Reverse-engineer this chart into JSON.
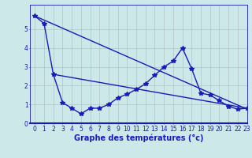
{
  "title": "Graphe des températures (°c)",
  "bg_color": "#cce8e8",
  "line_color": "#1a1ab8",
  "xlim": [
    -0.5,
    23
  ],
  "ylim": [
    0,
    6.3
  ],
  "yticks": [
    0,
    1,
    2,
    3,
    4,
    5
  ],
  "xticks": [
    0,
    1,
    2,
    3,
    4,
    5,
    6,
    7,
    8,
    9,
    10,
    11,
    12,
    13,
    14,
    15,
    16,
    17,
    18,
    19,
    20,
    21,
    22,
    23
  ],
  "series1_x": [
    0,
    1,
    2,
    3,
    4,
    5,
    6,
    7,
    8,
    9,
    10,
    11,
    12,
    13,
    14,
    15,
    16,
    17,
    18,
    19,
    20,
    21,
    22,
    23
  ],
  "series1_y": [
    5.7,
    5.3,
    2.6,
    1.1,
    0.8,
    0.5,
    0.8,
    0.8,
    1.0,
    1.35,
    1.55,
    1.8,
    2.1,
    2.55,
    3.0,
    3.3,
    4.0,
    2.9,
    1.6,
    1.5,
    1.2,
    0.9,
    0.75,
    0.8
  ],
  "series2_x": [
    0,
    23
  ],
  "series2_y": [
    5.7,
    0.75
  ],
  "series3_x": [
    2,
    23
  ],
  "series3_y": [
    2.6,
    0.8
  ],
  "grid_color": "#aabbbb",
  "marker": "*",
  "markersize": 4,
  "linewidth": 1.0,
  "xlabel_fontsize": 7,
  "tick_fontsize": 5.5,
  "xlabel_color": "#1a1ab8",
  "separator_color": "#1a1ab8"
}
